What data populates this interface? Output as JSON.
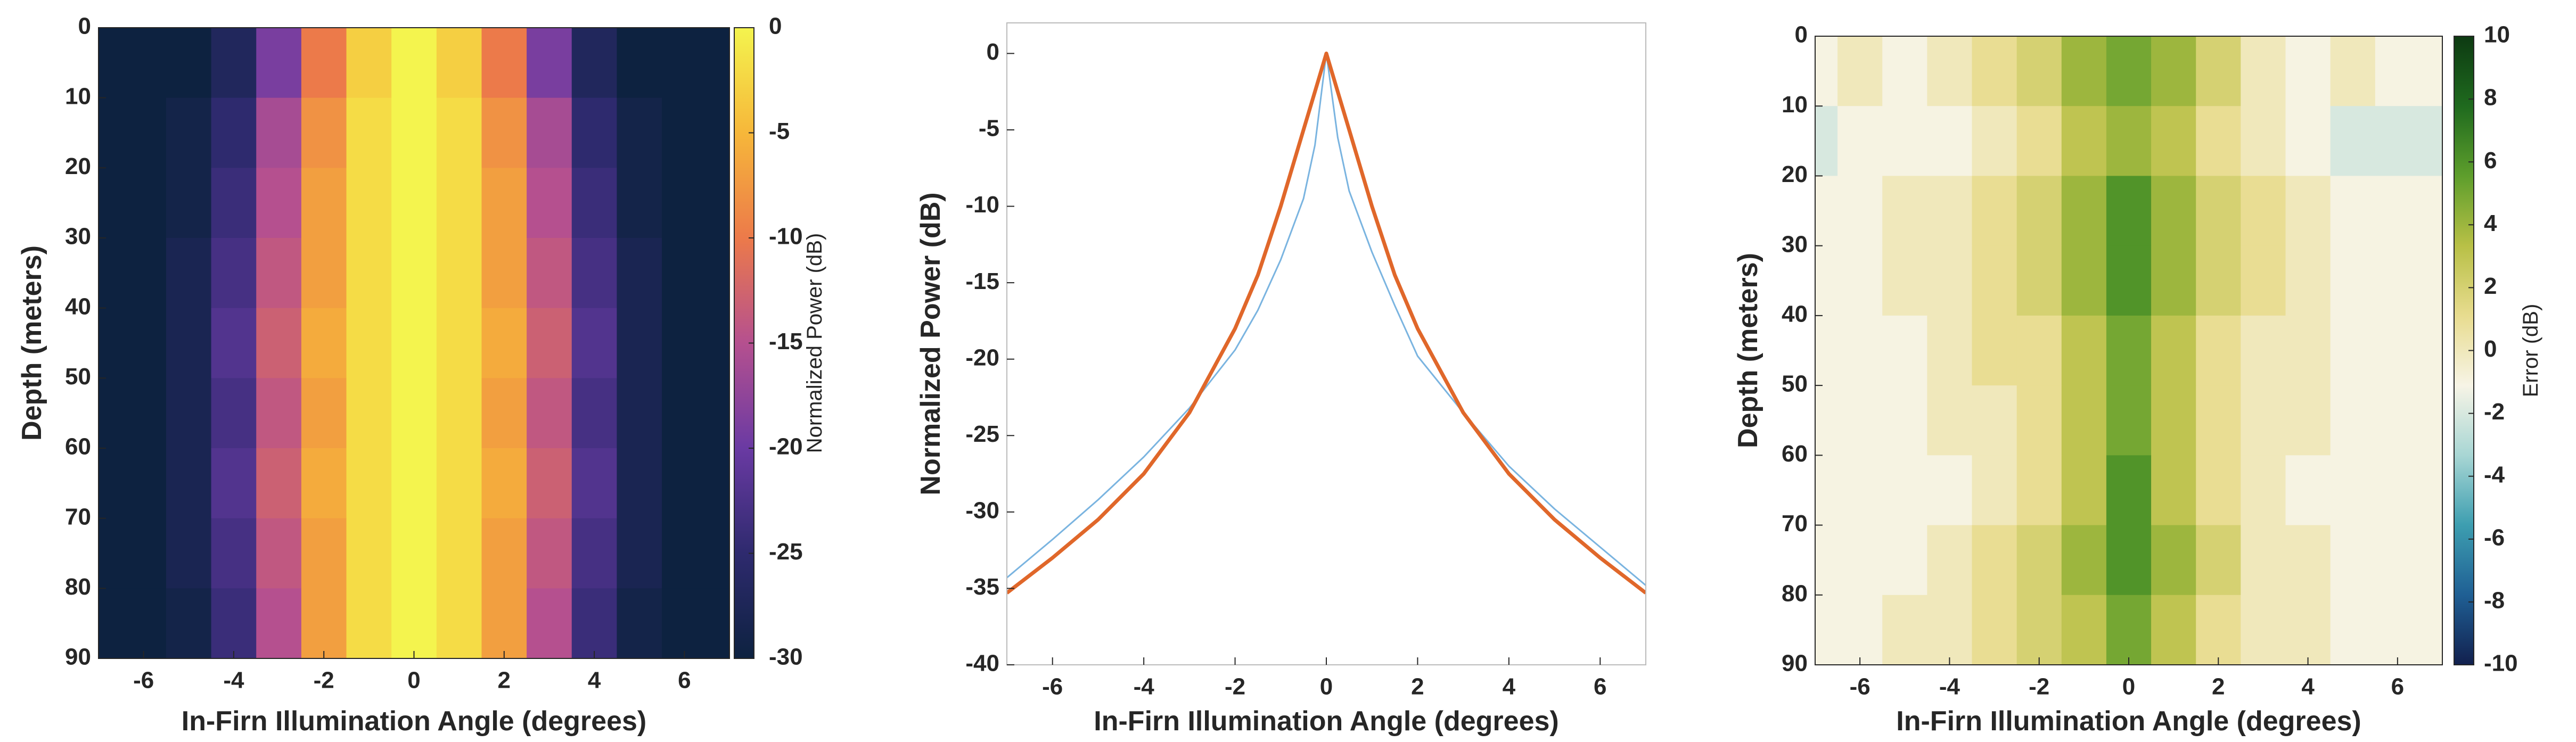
{
  "chart_data": [
    {
      "type": "heatmap",
      "x": [
        -7,
        -6,
        -5,
        -4,
        -3,
        -2,
        -1,
        0,
        1,
        2,
        3,
        4,
        5,
        6,
        7
      ],
      "y": [
        5,
        15,
        25,
        35,
        45,
        55,
        65,
        75,
        85
      ],
      "values": [
        [
          -30,
          -30,
          -30,
          -27,
          -19,
          -10,
          -3,
          0,
          -3,
          -10,
          -19,
          -27,
          -30,
          -30,
          -30
        ],
        [
          -30,
          -30,
          -29,
          -25,
          -16,
          -8,
          -2,
          0,
          -2,
          -8,
          -16,
          -25,
          -29,
          -30,
          -30
        ],
        [
          -30,
          -30,
          -29,
          -24,
          -15,
          -7,
          -2,
          0,
          -2,
          -7,
          -15,
          -24,
          -29,
          -30,
          -30
        ],
        [
          -30,
          -30,
          -28,
          -23,
          -14,
          -7,
          -2,
          0,
          -2,
          -7,
          -14,
          -23,
          -28,
          -30,
          -30
        ],
        [
          -30,
          -30,
          -28,
          -22,
          -13,
          -6,
          -2,
          0,
          -2,
          -6,
          -13,
          -22,
          -28,
          -30,
          -30
        ],
        [
          -30,
          -30,
          -28,
          -23,
          -14,
          -7,
          -2,
          0,
          -2,
          -7,
          -14,
          -23,
          -28,
          -30,
          -30
        ],
        [
          -30,
          -30,
          -28,
          -22,
          -13,
          -6,
          -2,
          0,
          -2,
          -6,
          -13,
          -22,
          -28,
          -30,
          -30
        ],
        [
          -30,
          -30,
          -28,
          -23,
          -14,
          -7,
          -2,
          0,
          -2,
          -7,
          -14,
          -23,
          -28,
          -30,
          -30
        ],
        [
          -30,
          -30,
          -29,
          -24,
          -15,
          -7,
          -2,
          0,
          -2,
          -7,
          -15,
          -24,
          -29,
          -30,
          -30
        ]
      ],
      "xlim": [
        -7,
        7
      ],
      "ylim": [
        0,
        90
      ],
      "y_reversed": true,
      "xticks": [
        -6,
        -4,
        -2,
        0,
        2,
        4,
        6
      ],
      "yticks": [
        0,
        10,
        20,
        30,
        40,
        50,
        60,
        70,
        80,
        90
      ],
      "x_label": "In-Firn Illumination Angle (degrees)",
      "y_label": "Depth (meters)",
      "colorbar_label": "Normalized Power (dB)",
      "clim": [
        -30,
        0
      ],
      "cticks": [
        -30,
        -25,
        -20,
        -15,
        -10,
        -5,
        0
      ],
      "colormap": [
        "#0d2240",
        "#2e2a6e",
        "#6a3aa3",
        "#b5508f",
        "#ec7a4a",
        "#f6b73a",
        "#f4f44e"
      ]
    },
    {
      "type": "line",
      "x": [
        -7,
        -6,
        -5,
        -4,
        -3,
        -2,
        -1.5,
        -1,
        -0.5,
        -0.25,
        0,
        0.25,
        0.5,
        1,
        1.5,
        2,
        3,
        4,
        5,
        6,
        7
      ],
      "series": [
        {
          "color": "#7ab4e0",
          "width": 3,
          "values": [
            -34.3,
            -31.8,
            -29.2,
            -26.4,
            -23.2,
            -19.4,
            -16.8,
            -13.5,
            -9.5,
            -6,
            0,
            -5.5,
            -9,
            -13,
            -16.5,
            -19.8,
            -23.5,
            -27,
            -29.8,
            -32.3,
            -34.8
          ]
        },
        {
          "color": "#e0672a",
          "width": 7,
          "values": [
            -35.3,
            -33,
            -30.5,
            -27.5,
            -23.5,
            -18,
            -14.5,
            -10,
            -5,
            -2.5,
            0,
            -2.5,
            -5,
            -10,
            -14.5,
            -18,
            -23.5,
            -27.5,
            -30.5,
            -33,
            -35.3
          ]
        }
      ],
      "xlim": [
        -7,
        7
      ],
      "ylim": [
        -40,
        2
      ],
      "xticks": [
        -6,
        -4,
        -2,
        0,
        2,
        4,
        6
      ],
      "yticks": [
        -40,
        -35,
        -30,
        -25,
        -20,
        -15,
        -10,
        -5,
        0
      ],
      "x_label": "In-Firn Illumination Angle (degrees)",
      "y_label": "Normalized Power (dB)"
    },
    {
      "type": "heatmap",
      "x": [
        -7,
        -6,
        -5,
        -4,
        -3,
        -2,
        -1,
        0,
        1,
        2,
        3,
        4,
        5,
        6,
        7
      ],
      "y": [
        5,
        15,
        25,
        35,
        45,
        55,
        65,
        75,
        85
      ],
      "values": [
        [
          -1,
          0,
          -1,
          0,
          1,
          2,
          4,
          5,
          4,
          2,
          0,
          -1,
          0,
          -1,
          -1
        ],
        [
          -2,
          -1,
          -1,
          -1,
          0,
          1,
          3,
          4,
          3,
          1,
          0,
          -1,
          -2,
          -2,
          -2
        ],
        [
          -1,
          -1,
          0,
          0,
          1,
          2,
          4,
          6,
          4,
          2,
          1,
          0,
          -1,
          -1,
          -1
        ],
        [
          -1,
          -1,
          0,
          0,
          1,
          2,
          4,
          6,
          4,
          2,
          1,
          0,
          -1,
          -1,
          -1
        ],
        [
          -1,
          -1,
          -1,
          0,
          1,
          1,
          3,
          5,
          3,
          1,
          0,
          0,
          -1,
          -1,
          -1
        ],
        [
          -1,
          -1,
          -1,
          0,
          0,
          1,
          3,
          5,
          3,
          1,
          0,
          0,
          -1,
          -1,
          -1
        ],
        [
          -1,
          -1,
          -1,
          -1,
          0,
          1,
          3,
          6,
          3,
          1,
          0,
          -1,
          -1,
          -1,
          -1
        ],
        [
          -1,
          -1,
          -1,
          0,
          1,
          2,
          4,
          6,
          4,
          2,
          0,
          0,
          -1,
          -1,
          -1
        ],
        [
          -1,
          -1,
          0,
          0,
          1,
          2,
          3,
          5,
          3,
          1,
          0,
          0,
          -1,
          -1,
          -1
        ]
      ],
      "xlim": [
        -7,
        7
      ],
      "ylim": [
        0,
        90
      ],
      "y_reversed": true,
      "xticks": [
        -6,
        -4,
        -2,
        0,
        2,
        4,
        6
      ],
      "yticks": [
        0,
        10,
        20,
        30,
        40,
        50,
        60,
        70,
        80,
        90
      ],
      "x_label": "In-Firn Illumination Angle (degrees)",
      "y_label": "Depth (meters)",
      "colorbar_label": "Error (dB)",
      "clim": [
        -10,
        10
      ],
      "cticks": [
        -10,
        -8,
        -6,
        -4,
        -2,
        0,
        2,
        4,
        6,
        8,
        10
      ],
      "colormap": [
        "#12204e",
        "#1f5f94",
        "#3d9eb0",
        "#a8d6d4",
        "#f7f4e6",
        "#e8dc8f",
        "#b8c046",
        "#5e9e2c",
        "#1f6a1e",
        "#0d3a12"
      ]
    }
  ]
}
